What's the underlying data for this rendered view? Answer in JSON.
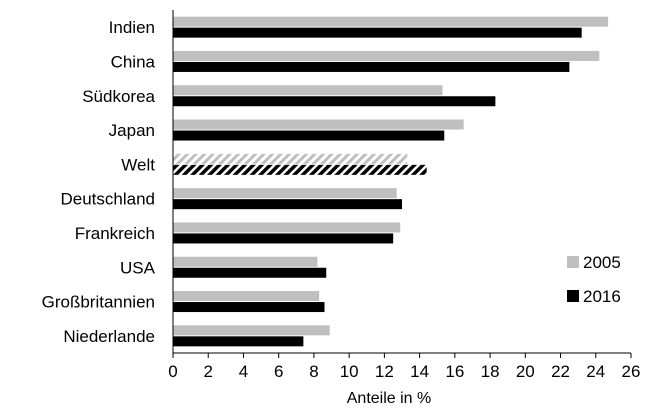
{
  "chart_data": {
    "type": "bar",
    "orientation": "horizontal",
    "categories": [
      "Indien",
      "China",
      "Südkorea",
      "Japan",
      "Welt",
      "Deutschland",
      "Frankreich",
      "USA",
      "Großbritannien",
      "Niederlande"
    ],
    "series": [
      {
        "name": "2005",
        "values": [
          24.7,
          24.2,
          15.3,
          16.5,
          13.3,
          12.7,
          12.9,
          8.2,
          8.3,
          8.9
        ],
        "color": "#bfbfbf"
      },
      {
        "name": "2016",
        "values": [
          23.2,
          22.5,
          18.3,
          15.4,
          14.4,
          13.0,
          12.5,
          8.7,
          8.6,
          7.4
        ],
        "color": "#000000"
      }
    ],
    "highlight_category": "Welt",
    "highlight_fill": "hatched",
    "xlabel": "Anteile in %",
    "xlim": [
      0,
      26
    ],
    "xticks": [
      "0",
      "2",
      "4",
      "6",
      "8",
      "10",
      "12",
      "14",
      "16",
      "18",
      "20",
      "22",
      "24",
      "26"
    ],
    "grid": false,
    "legend_position": "bottom-right"
  }
}
